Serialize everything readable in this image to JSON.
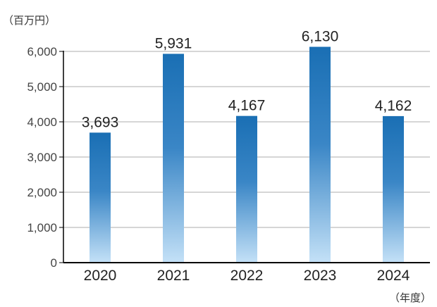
{
  "chart_data": {
    "type": "bar",
    "categories": [
      "2020",
      "2021",
      "2022",
      "2023",
      "2024"
    ],
    "values": [
      3693,
      5931,
      4167,
      6130,
      4162
    ],
    "data_labels": [
      "3,693",
      "5,931",
      "4,167",
      "6,130",
      "4,162"
    ],
    "y_unit_label": "（百万円）",
    "x_unit_label": "（年度）",
    "ylim": [
      0,
      6000
    ],
    "y_ticks": [
      0,
      1000,
      2000,
      3000,
      4000,
      5000,
      6000
    ],
    "y_tick_labels": [
      "0",
      "1,000",
      "2,000",
      "3,000",
      "4,000",
      "5,000",
      "6,000"
    ],
    "grid": true,
    "colors": {
      "bar_top": "#1a6fb4",
      "bar_bottom": "#c4e1f7",
      "grid": "#d6d6d6",
      "axis": "#000000"
    }
  }
}
